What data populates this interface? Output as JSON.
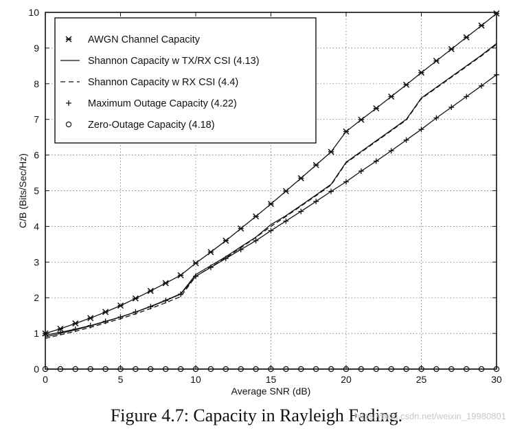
{
  "figure": {
    "caption": "Figure 4.7: Capacity in Rayleigh Fading.",
    "watermark": "https://blog.csdn.net/weixin_19980801"
  },
  "chart_data": {
    "type": "line",
    "xlabel": "Average SNR (dB)",
    "ylabel": "C/B (Bits/Sec/Hz)",
    "xlim": [
      0,
      30
    ],
    "ylim": [
      0,
      10
    ],
    "xticks": [
      0,
      5,
      10,
      15,
      20,
      25,
      30
    ],
    "yticks": [
      0,
      1,
      2,
      3,
      4,
      5,
      6,
      7,
      8,
      9,
      10
    ],
    "grid": "dotted",
    "legend_position": "top-left",
    "x": [
      0,
      1,
      2,
      3,
      4,
      5,
      6,
      7,
      8,
      9,
      10,
      11,
      12,
      13,
      14,
      15,
      16,
      17,
      18,
      19,
      20,
      21,
      22,
      23,
      24,
      25,
      26,
      27,
      28,
      29,
      30
    ],
    "series": [
      {
        "name": "AWGN Channel Capacity",
        "style": "solid",
        "marker": "asterisk",
        "values": [
          1.0,
          1.13,
          1.28,
          1.43,
          1.6,
          1.78,
          1.98,
          2.19,
          2.41,
          2.63,
          2.97,
          3.28,
          3.6,
          3.94,
          4.28,
          4.63,
          4.99,
          5.35,
          5.72,
          6.09,
          6.66,
          6.99,
          7.31,
          7.64,
          7.97,
          8.31,
          8.64,
          8.97,
          9.3,
          9.63,
          9.97
        ]
      },
      {
        "name": "Shannon Capacity w TX/RX CSI (4.13)",
        "style": "solid",
        "marker": "none",
        "values": [
          0.9,
          1.0,
          1.1,
          1.21,
          1.33,
          1.46,
          1.6,
          1.76,
          1.93,
          2.11,
          2.65,
          2.9,
          3.15,
          3.43,
          3.7,
          4.05,
          4.3,
          4.59,
          4.88,
          5.18,
          5.8,
          6.1,
          6.4,
          6.7,
          7.0,
          7.6,
          7.9,
          8.2,
          8.5,
          8.8,
          9.13
        ]
      },
      {
        "name": "Shannon Capacity w RX CSI (4.4)",
        "style": "dashed",
        "marker": "none",
        "values": [
          0.86,
          0.96,
          1.06,
          1.17,
          1.29,
          1.41,
          1.55,
          1.7,
          1.86,
          2.03,
          2.6,
          2.86,
          3.12,
          3.4,
          3.69,
          4.0,
          4.28,
          4.57,
          4.86,
          5.16,
          5.78,
          6.08,
          6.38,
          6.68,
          6.98,
          7.58,
          7.88,
          8.18,
          8.48,
          8.78,
          9.1
        ]
      },
      {
        "name": "Maximum Outage Capacity (4.22)",
        "style": "solid",
        "marker": "plus",
        "values": [
          0.95,
          1.03,
          1.12,
          1.22,
          1.34,
          1.46,
          1.6,
          1.75,
          1.92,
          2.1,
          2.6,
          2.85,
          3.1,
          3.35,
          3.6,
          3.88,
          4.15,
          4.42,
          4.7,
          4.98,
          5.25,
          5.55,
          5.83,
          6.12,
          6.42,
          6.72,
          7.04,
          7.34,
          7.64,
          7.94,
          8.25
        ]
      },
      {
        "name": "Zero-Outage Capacity (4.18)",
        "style": "solid",
        "marker": "circle",
        "values": [
          0,
          0,
          0,
          0,
          0,
          0,
          0,
          0,
          0,
          0,
          0,
          0,
          0,
          0,
          0,
          0,
          0,
          0,
          0,
          0,
          0,
          0,
          0,
          0,
          0,
          0,
          0,
          0,
          0,
          0,
          0
        ]
      }
    ]
  }
}
